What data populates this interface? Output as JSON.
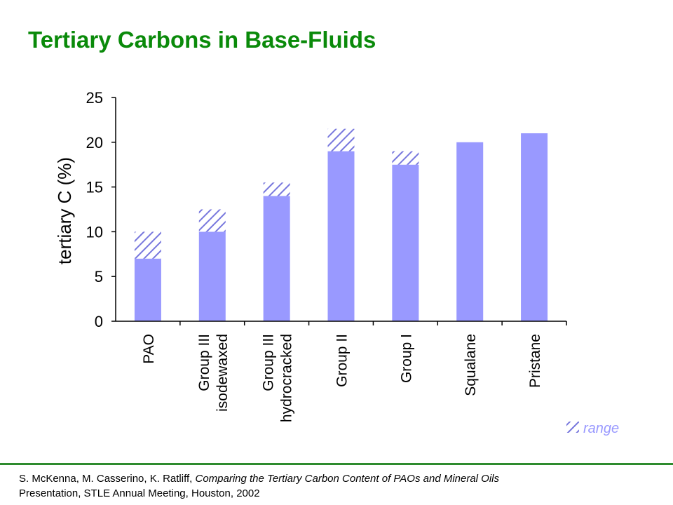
{
  "slide": {
    "title": "Tertiary Carbons in Base-Fluids"
  },
  "citation": {
    "authors": "S. McKenna, M. Casserino, K. Ratliff, ",
    "work": "Comparing the Tertiary Carbon Content of PAOs and Mineral Oils",
    "venue": "Presentation, STLE Annual Meeting, Houston, 2002"
  },
  "colors": {
    "title": "#0a8a0a",
    "bar": "#9999ff",
    "hatch": "#7777dd",
    "footer_rule": "#2e8b2e"
  },
  "chart_data": {
    "type": "bar",
    "title": "",
    "xlabel": "",
    "ylabel": "tertiary C (%)",
    "ylim": [
      0,
      25
    ],
    "yticks": [
      0,
      5,
      10,
      15,
      20,
      25
    ],
    "grid": false,
    "categories": [
      [
        "PAO"
      ],
      [
        "Group III",
        "isodewaxed"
      ],
      [
        "Group III",
        "hydrocracked"
      ],
      [
        "Group II"
      ],
      [
        "Group I"
      ],
      [
        "Squalane"
      ],
      [
        "Pristane"
      ]
    ],
    "series": [
      {
        "name": "",
        "style": "solid",
        "values": [
          7,
          10,
          14,
          19,
          17.5,
          20,
          21
        ]
      },
      {
        "name": "range",
        "style": "hatched",
        "values": [
          3,
          2.5,
          1.5,
          2.5,
          1.5,
          0,
          0
        ]
      }
    ],
    "legend": {
      "position": "bottom-right",
      "entries": [
        "range"
      ]
    }
  }
}
